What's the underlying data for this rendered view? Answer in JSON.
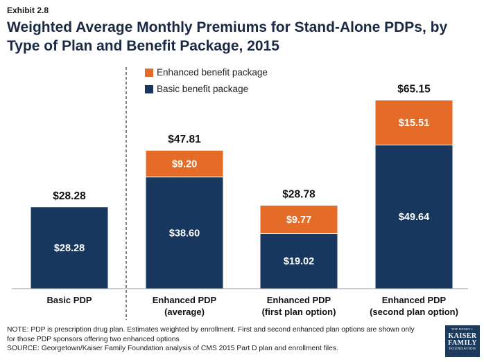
{
  "header": {
    "exhibit": "Exhibit 2.8",
    "title": "Weighted Average Monthly Premiums for Stand-Alone PDPs, by Type of Plan and Benefit Package, 2015"
  },
  "chart_data": {
    "type": "bar",
    "stacked": true,
    "categories": [
      [
        "Basic PDP"
      ],
      [
        "Enhanced PDP",
        "(average)"
      ],
      [
        "Enhanced PDP",
        "(first plan option)"
      ],
      [
        "Enhanced PDP",
        "(second plan option)"
      ]
    ],
    "series": [
      {
        "name": "Basic benefit package",
        "color": "#17375e",
        "values": [
          28.28,
          38.6,
          19.02,
          49.64
        ],
        "labels": [
          "$28.28",
          "$38.60",
          "$19.02",
          "$49.64"
        ]
      },
      {
        "name": "Enhanced benefit package",
        "color": "#e46c28",
        "values": [
          0,
          9.2,
          9.77,
          15.51
        ],
        "labels": [
          "",
          "$9.20",
          "$9.77",
          "$15.51"
        ]
      }
    ],
    "totals": [
      "$28.28",
      "$47.81",
      "$28.78",
      "$65.15"
    ],
    "legend_order": [
      "Enhanced benefit package",
      "Basic benefit package"
    ],
    "legend_position": "top-center",
    "ylim": [
      0,
      72
    ],
    "divider_after_category": 0,
    "grid": false
  },
  "notes": {
    "note_lines": [
      "NOTE: PDP is prescription drug plan.  Estimates weighted by enrollment. First and second enhanced plan options are shown only",
      "for those PDP sponsors offering two enhanced options"
    ],
    "source": "SOURCE: Georgetown/Kaiser Family Foundation analysis of CMS 2015 Part D plan and enrollment files."
  },
  "logo": {
    "line1": "THE HENRY J.",
    "line2": "KAISER",
    "line3": "FAMILY",
    "line4": "FOUNDATION"
  }
}
